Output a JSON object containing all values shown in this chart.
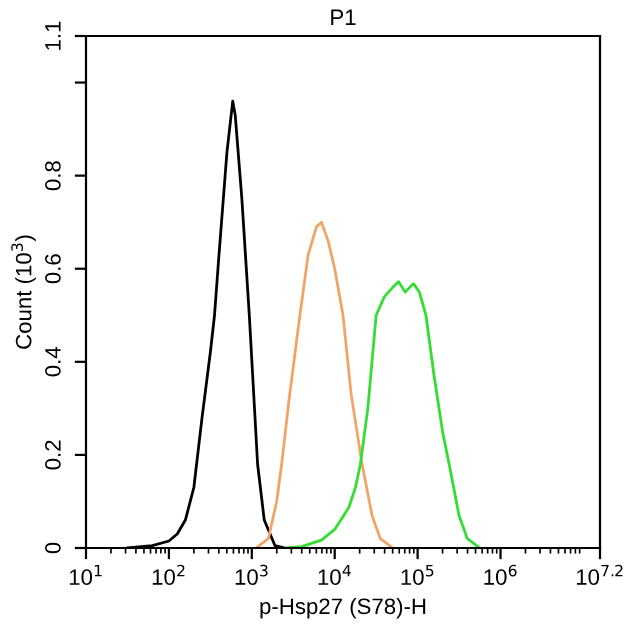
{
  "chart_data": {
    "type": "line",
    "title": "P1",
    "xlabel": "p-Hsp27 (S78)-H",
    "ylabel": "Count (10$^{3}$)",
    "log": "x",
    "grid": false,
    "marker": "none",
    "line_style": "solid",
    "xlim": [
      10,
      15848932
    ],
    "xticks": [
      {
        "value": 10,
        "label": "10$^{1}$"
      },
      {
        "value": 100,
        "label": "10$^{2}$"
      },
      {
        "value": 1000,
        "label": "10$^{3}$"
      },
      {
        "value": 10000,
        "label": "10$^{4}$"
      },
      {
        "value": 100000,
        "label": "10$^{5}$"
      },
      {
        "value": 1000000,
        "label": "10$^{6}$"
      },
      {
        "value": 15848932,
        "label": "10$^{7.2}$"
      }
    ],
    "ylim": [
      0,
      1.1
    ],
    "yticks": [
      0,
      0.2,
      0.4,
      0.6,
      0.8,
      {
        "value": 1.0,
        "label": null
      },
      1.1
    ],
    "series": [
      {
        "color": "#000000",
        "x": [
          31.6,
          63.1,
          100,
          126,
          158,
          200,
          251,
          316,
          355,
          398,
          501,
          589,
          631,
          759,
          933,
          1175,
          1413,
          1905,
          2512
        ],
        "values": [
          0,
          0.005,
          0.015,
          0.03,
          0.06,
          0.13,
          0.28,
          0.42,
          0.5,
          0.62,
          0.85,
          0.96,
          0.93,
          0.75,
          0.5,
          0.18,
          0.06,
          0.005,
          0
        ]
      },
      {
        "color": "#f0a468",
        "x": [
          1122,
          1585,
          1995,
          2291,
          2818,
          3802,
          4786,
          6026,
          6918,
          8318,
          10000,
          12600,
          15800,
          21400,
          28200,
          35500,
          50100
        ],
        "values": [
          0,
          0.02,
          0.1,
          0.18,
          0.32,
          0.5,
          0.63,
          0.69,
          0.7,
          0.66,
          0.6,
          0.5,
          0.33,
          0.18,
          0.07,
          0.02,
          0
        ]
      },
      {
        "color": "#33dd33",
        "x": [
          2512,
          3981,
          6918,
          10000,
          14800,
          17800,
          20400,
          25100,
          31600,
          39800,
          50100,
          58900,
          70800,
          89100,
          105000,
          126000,
          158000,
          200000,
          240000,
          316000,
          398000,
          562000
        ],
        "values": [
          0,
          0.003,
          0.017,
          0.04,
          0.087,
          0.13,
          0.18,
          0.3,
          0.5,
          0.54,
          0.56,
          0.572,
          0.55,
          0.568,
          0.55,
          0.5,
          0.37,
          0.25,
          0.18,
          0.07,
          0.02,
          0
        ]
      }
    ]
  }
}
